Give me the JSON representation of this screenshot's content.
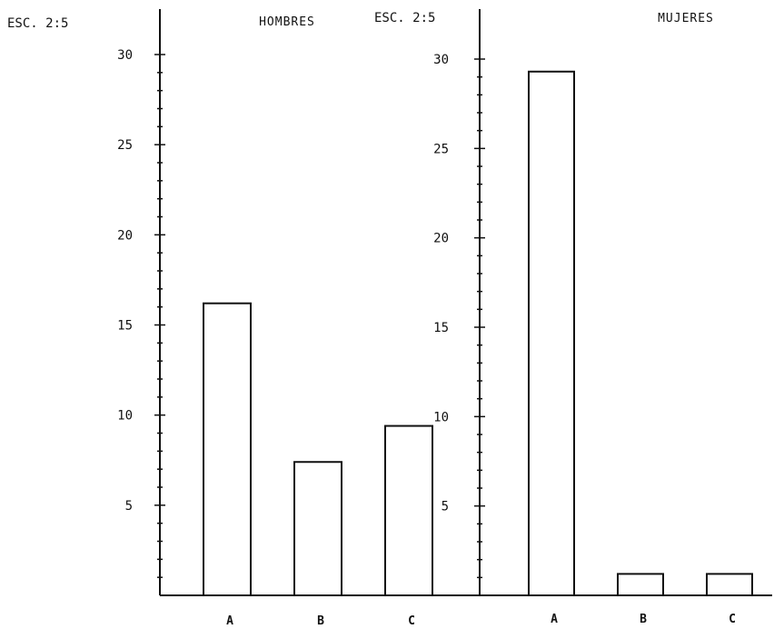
{
  "chart_data": [
    {
      "type": "bar",
      "title": "HOMBRES",
      "scale_label": "ESC. 2:5",
      "categories": [
        "A",
        "B",
        "C"
      ],
      "values": [
        16.2,
        7.4,
        9.4
      ],
      "ylim": [
        0,
        30
      ],
      "yticks": [
        "5",
        "10",
        "15",
        "20",
        "25",
        "30"
      ],
      "xlabel": "",
      "ylabel": "",
      "grid": false,
      "bar_fill": "#ffffff",
      "line_color": "#111111"
    },
    {
      "type": "bar",
      "title": "MUJERES",
      "scale_label": "ESC. 2:5",
      "categories": [
        "A",
        "B",
        "C"
      ],
      "values": [
        29.3,
        1.2,
        1.2
      ],
      "ylim": [
        0,
        30
      ],
      "yticks": [
        "5",
        "10",
        "15",
        "20",
        "25",
        "30"
      ],
      "xlabel": "",
      "ylabel": "",
      "grid": false,
      "bar_fill": "#ffffff",
      "line_color": "#111111"
    }
  ]
}
